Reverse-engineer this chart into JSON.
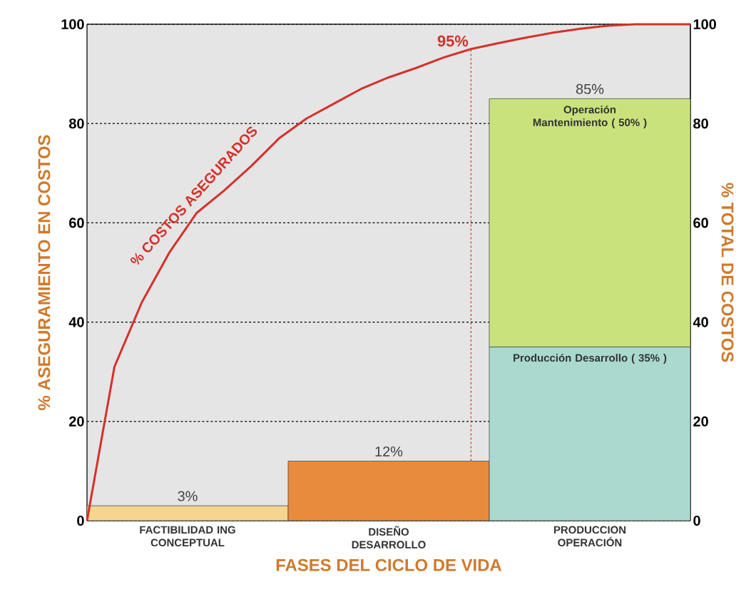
{
  "chart_data": [
    {
      "type": "line",
      "categories": [
        null,
        null,
        null,
        null,
        null,
        null,
        null,
        null,
        null,
        null,
        null,
        null,
        null,
        null,
        null,
        null,
        null,
        null,
        null,
        null,
        null,
        null,
        null
      ],
      "ylabel": "% ASEGURAMIENTO EN COSTOS",
      "ylim": [
        0,
        100
      ],
      "yticks": [
        0,
        20,
        40,
        60,
        80,
        100
      ],
      "grid": "y",
      "tick_labels": "y",
      "series": [
        {
          "name": "% COSTOS ASEGURADOS",
          "color": "#d7302a",
          "values": [
            0,
            31,
            44,
            54,
            62,
            66.5,
            71.5,
            77,
            81,
            84,
            87,
            89.3,
            91.2,
            93.3,
            95,
            96.2,
            97.3,
            98.3,
            99.1,
            99.7,
            100,
            100,
            100
          ],
          "value_labels": [
            null,
            null,
            null,
            null,
            null,
            null,
            null,
            null,
            null,
            null,
            null,
            null,
            null,
            null,
            "95%",
            null,
            null,
            null,
            null,
            null,
            null,
            null,
            null
          ]
        }
      ]
    },
    {
      "type": "bar",
      "stacked": true,
      "categories": [
        "FACTIBILIDAD ING CONCEPTUAL",
        "DISEÑO DESARROLLO",
        "PRODUCCION OPERACIÓN"
      ],
      "xlabel": "FASES DEL CICLO DE VIDA",
      "y2label": "% TOTAL DE COSTOS",
      "y2lim": [
        0,
        100
      ],
      "y2ticks": [
        0,
        20,
        40,
        60,
        80,
        100
      ],
      "series": [
        {
          "axis": "y2",
          "colors": [
            "#f6d58e",
            "#e98b3c",
            null
          ],
          "values": [
            3,
            12,
            null
          ]
        },
        {
          "axis": "y2",
          "name": "Producción Desarrollo ( 35% )",
          "color": "#a9d9cf",
          "values": [
            null,
            null,
            35
          ]
        },
        {
          "axis": "y2",
          "name": "Operación Mantenimiento ( 50% )",
          "color": "#c9e27c",
          "values": [
            null,
            null,
            50
          ]
        }
      ],
      "totals": [
        "3%",
        "12%",
        "85%"
      ]
    }
  ]
}
